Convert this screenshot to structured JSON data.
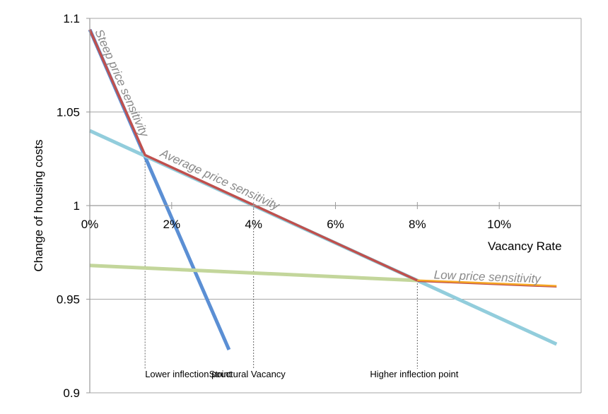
{
  "chart_data": {
    "type": "line",
    "xlabel": "Vacancy Rate",
    "ylabel": "Change of housing costs",
    "xlim": [
      0,
      12
    ],
    "ylim": [
      0.9,
      1.1
    ],
    "x_tick_labels": [
      "0%",
      "2%",
      "4%",
      "6%",
      "8%",
      "10%"
    ],
    "x_tick_values": [
      0,
      2,
      4,
      6,
      8,
      10
    ],
    "y_tick_labels": [
      "0.9",
      "0.95",
      "1",
      "1.05",
      "1.1"
    ],
    "y_tick_values": [
      0.9,
      0.95,
      1.0,
      1.05,
      1.1
    ],
    "grid": "horizontal",
    "series": [
      {
        "color": "#5b8fd4",
        "x": [
          0,
          3.4
        ],
        "y": [
          1.094,
          0.923
        ]
      },
      {
        "color": "#92cddc",
        "x": [
          0,
          11.4
        ],
        "y": [
          1.04,
          0.926
        ]
      },
      {
        "color": "#c3d69b",
        "x": [
          0,
          8.0
        ],
        "y": [
          0.968,
          0.96
        ]
      },
      {
        "color": "#c0504d",
        "x": [
          0,
          1.35,
          8.0
        ],
        "y": [
          1.094,
          1.027,
          0.96
        ]
      },
      {
        "color": "#f5a623",
        "x": [
          8.0,
          11.4
        ],
        "y": [
          0.96,
          0.957
        ]
      }
    ],
    "annotations": [
      {
        "text": "Steep price sensitivity",
        "x": 0.12,
        "y": 1.093
      },
      {
        "text": "Average price sensitivity",
        "x": 1.7,
        "y": 1.0265
      },
      {
        "text": "Low price sensitivity",
        "x": 8.4,
        "y": 0.961
      }
    ],
    "reference_lines": [
      {
        "label": "Lower inflection point",
        "x": 1.35,
        "y_top": 1.027
      },
      {
        "label": "Structural Vacancy",
        "x": 4.0,
        "y_top": 1.0
      },
      {
        "label": "Higher inflection point",
        "x": 8.0,
        "y_top": 0.96
      }
    ]
  }
}
